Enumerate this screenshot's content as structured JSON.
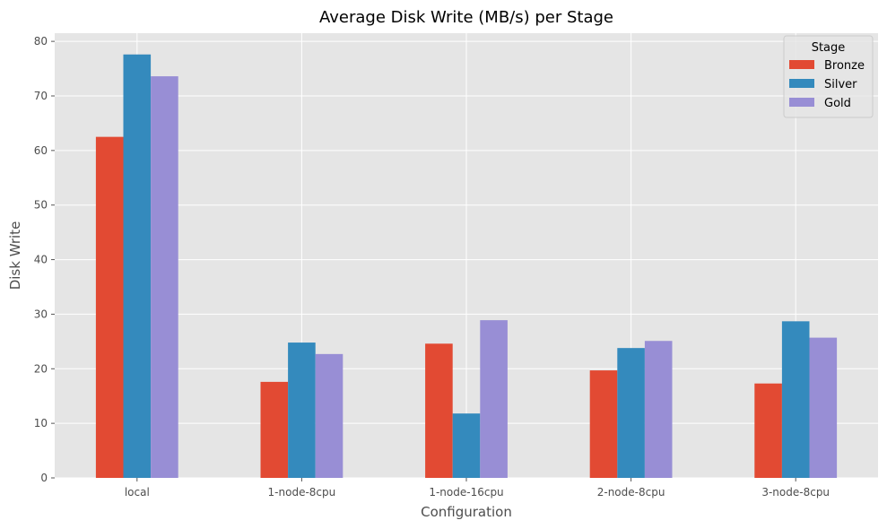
{
  "chart_data": {
    "type": "bar",
    "title": "Average Disk Write (MB/s) per Stage",
    "xlabel": "Configuration",
    "ylabel": "Disk Write",
    "categories": [
      "local",
      "1-node-8cpu",
      "1-node-16cpu",
      "2-node-8cpu",
      "3-node-8cpu"
    ],
    "series": [
      {
        "name": "Bronze",
        "values": [
          62.5,
          17.6,
          24.6,
          19.7,
          17.3
        ],
        "color": "#E24A33"
      },
      {
        "name": "Silver",
        "values": [
          77.6,
          24.8,
          11.8,
          23.8,
          28.7
        ],
        "color": "#348ABD"
      },
      {
        "name": "Gold",
        "values": [
          73.6,
          22.7,
          28.9,
          25.1,
          25.7
        ],
        "color": "#988ED5"
      }
    ],
    "ylim": [
      0,
      81.5
    ],
    "yticks": [
      0,
      10,
      20,
      30,
      40,
      50,
      60,
      70,
      80
    ],
    "legend": {
      "title": "Stage",
      "position": "top-right"
    },
    "grid": true,
    "background": "#E5E5E5",
    "grid_color": "#FFFFFF"
  }
}
